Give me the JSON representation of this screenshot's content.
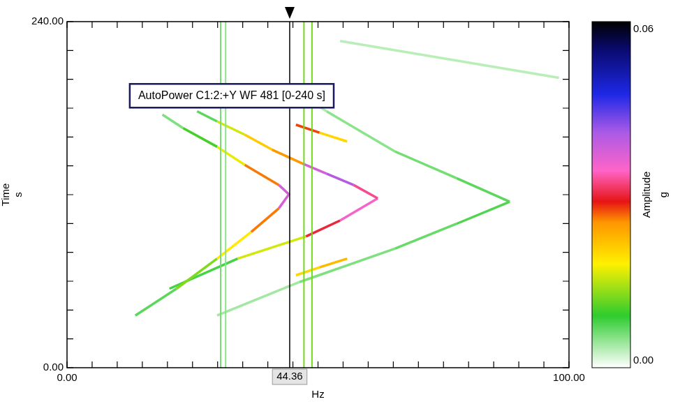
{
  "chart_data": {
    "type": "spectrogram",
    "title": "AutoPower C1:2:+Y WF 481 [0-240 s]",
    "x_label": "Hz",
    "y_label": "Time",
    "y_unit": "s",
    "grid": false,
    "xlim": [
      0,
      100
    ],
    "xticks": [
      {
        "value": 0,
        "label": "0.00"
      },
      {
        "value": 100,
        "label": "100.00"
      }
    ],
    "x_minor_ticks": [
      5,
      10,
      15,
      20,
      25,
      30,
      35,
      40,
      45,
      50,
      55,
      60,
      65,
      70,
      75,
      80,
      85,
      90,
      95
    ],
    "ylim": [
      0,
      240
    ],
    "yticks": [
      {
        "value": 0,
        "label": "0.00"
      },
      {
        "value": 240,
        "label": "240.00"
      }
    ],
    "y_minor_ticks": [
      20,
      40,
      60,
      80,
      100,
      120,
      140,
      160,
      180,
      200,
      220
    ],
    "cursor": {
      "x": 44.36,
      "label": "44.36"
    },
    "colorbar": {
      "label": "Amplitude",
      "unit": "g",
      "range": [
        0,
        0.06
      ],
      "ticks": [
        {
          "value": 0,
          "label": "0.00"
        },
        {
          "value": 0.06,
          "label": "0.06"
        }
      ]
    },
    "tracks": [
      {
        "x": [
          30.6,
          30.6
        ],
        "y": [
          0,
          240
        ],
        "amplitude": [
          0.006,
          0.006
        ]
      },
      {
        "x": [
          31.6,
          31.6
        ],
        "y": [
          0,
          240
        ],
        "amplitude": [
          0.005,
          0.005
        ]
      },
      {
        "x": [
          47.2,
          47.2
        ],
        "y": [
          0,
          240
        ],
        "amplitude": [
          0.012,
          0.012
        ]
      },
      {
        "x": [
          48.8,
          48.8
        ],
        "y": [
          0,
          240
        ],
        "amplitude": [
          0.012,
          0.012
        ]
      },
      {
        "x": [
          54.4,
          98.0
        ],
        "y": [
          226.6,
          201.0
        ],
        "amplitude": [
          0.003,
          0.003
        ]
      },
      {
        "x": [
          29.9,
          46.3,
          65.3,
          77.6,
          88.2,
          77.6,
          65.3,
          51.7,
          43.5
        ],
        "y": [
          36.2,
          59.4,
          82.6,
          99.8,
          115.1,
          131.4,
          150.0,
          177.8,
          196.4
        ],
        "amplitude": [
          0.003,
          0.005,
          0.006,
          0.007,
          0.008,
          0.006,
          0.006,
          0.004,
          0.003
        ]
      },
      {
        "x": [
          13.6,
          21.8,
          29.9,
          36.7,
          42.2,
          44.2,
          42.2,
          35.4,
          29.9,
          23.1,
          19.0
        ],
        "y": [
          36.2,
          54.8,
          75.7,
          94.2,
          110.5,
          120.2,
          126.7,
          140.7,
          153.2,
          166.2,
          175.5
        ],
        "amplitude": [
          0.004,
          0.01,
          0.015,
          0.022,
          0.03,
          0.045,
          0.03,
          0.022,
          0.012,
          0.008,
          0.003
        ]
      },
      {
        "x": [
          20.4,
          34.0,
          47.6,
          54.4,
          61.9,
          57.1,
          51.7,
          46.9,
          40.8,
          35.4,
          29.9,
          25.9
        ],
        "y": [
          54.8,
          75.7,
          91.0,
          102.1,
          117.5,
          126.7,
          134.6,
          141.6,
          151.3,
          161.6,
          170.8,
          177.8
        ],
        "amplitude": [
          0.004,
          0.012,
          0.02,
          0.04,
          0.03,
          0.035,
          0.045,
          0.03,
          0.02,
          0.022,
          0.01,
          0.004
        ]
      },
      {
        "x": [
          45.6,
          50.3,
          55.8
        ],
        "y": [
          168.5,
          163.0,
          156.9
        ],
        "amplitude": [
          0.03,
          0.025,
          0.015
        ]
      },
      {
        "x": [
          45.6,
          50.3,
          55.8
        ],
        "y": [
          64.1,
          69.6,
          75.7
        ],
        "amplitude": [
          0.015,
          0.025,
          0.02
        ]
      }
    ]
  }
}
